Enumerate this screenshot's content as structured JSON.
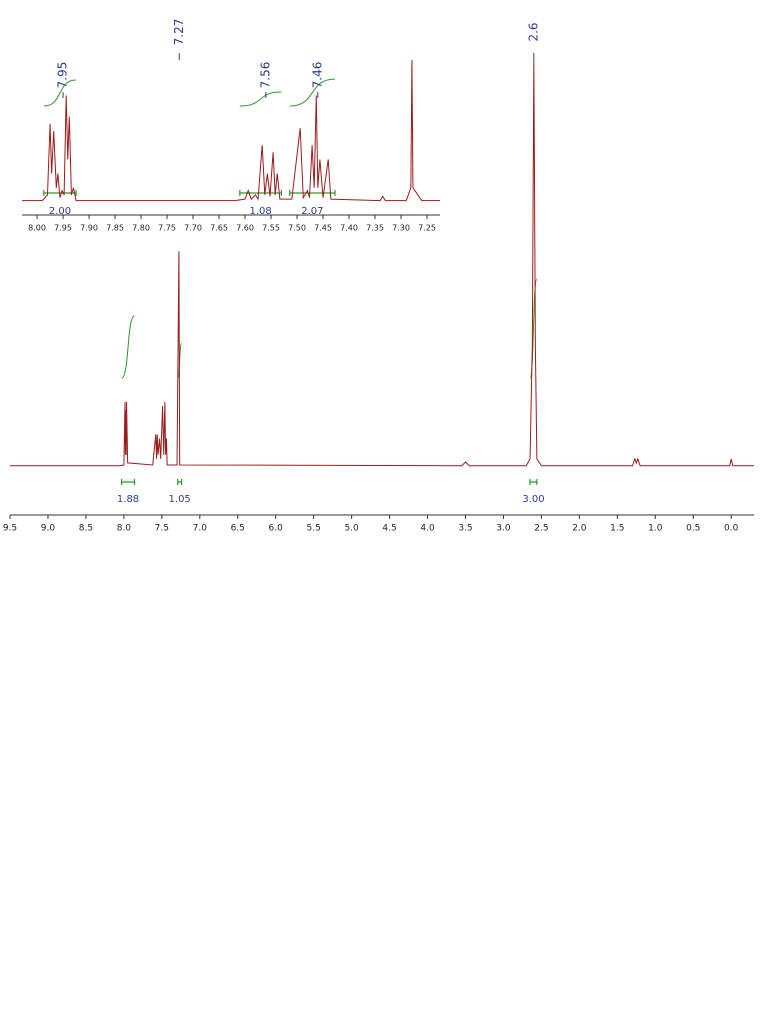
{
  "chart_data": [
    {
      "type": "line",
      "color": "#9b1c1c",
      "x": [
        9.5,
        8.05,
        8.0,
        7.985,
        7.98,
        7.975,
        7.97,
        7.965,
        7.95,
        7.62,
        7.58,
        7.57,
        7.56,
        7.55,
        7.53,
        7.515,
        7.49,
        7.475,
        7.46,
        7.45,
        7.44,
        7.43,
        7.3,
        7.275,
        7.265,
        3.55,
        3.5,
        3.45,
        2.7,
        2.65,
        2.62,
        2.6,
        2.58,
        2.56,
        2.5,
        1.3,
        1.27,
        1.25,
        1.23,
        1.2,
        0.02,
        0.0,
        -0.02,
        -0.3
      ],
      "values": [
        0.3,
        0.3,
        0.5,
        16,
        3,
        14,
        3,
        16,
        1,
        0.5,
        8,
        2,
        8,
        3,
        7,
        2,
        15,
        3,
        16,
        3,
        7,
        0.5,
        0.5,
        53,
        0.5,
        0.3,
        1.2,
        0.3,
        0.3,
        2,
        30,
        100,
        30,
        2,
        0.3,
        0.3,
        2,
        1,
        2,
        0.3,
        0.3,
        2,
        0.3,
        0.3
      ],
      "xlim": [
        9.5,
        -0.3
      ],
      "ylim": [
        0,
        100
      ],
      "xticks": [
        9.5,
        {
          "value": 9,
          "label": "9.0"
        },
        8.5,
        {
          "value": 8,
          "label": "8.0"
        },
        7.5,
        {
          "value": 7,
          "label": "7.0"
        },
        6.5,
        {
          "value": 6,
          "label": "6.0"
        },
        5.5,
        {
          "value": 5,
          "label": "5.0"
        },
        4.5,
        {
          "value": 4,
          "label": "4.0"
        },
        3.5,
        {
          "value": 3,
          "label": "3.0"
        },
        2.5,
        {
          "value": 2,
          "label": "2.0"
        },
        1.5,
        {
          "value": 1,
          "label": "1.0"
        },
        0.5,
        {
          "value": 0,
          "label": "0.0"
        }
      ],
      "peaks": [
        7.27,
        2.6
      ],
      "integrals": {
        "ranges": [
          [
            8.03,
            7.86
          ],
          [
            7.29,
            7.24
          ],
          [
            2.65,
            2.56
          ]
        ],
        "values": [
          1.88,
          1.05,
          3
        ],
        "value_labels": [
          "1.88",
          "1.05",
          "3.00"
        ]
      }
    },
    {
      "type": "line",
      "color": "#9b1c1c",
      "x": [
        8.029,
        7.99,
        7.98,
        7.975,
        7.972,
        7.968,
        7.963,
        7.96,
        7.956,
        7.952,
        7.948,
        7.944,
        7.941,
        7.938,
        7.934,
        7.93,
        7.925,
        7.62,
        7.6,
        7.594,
        7.588,
        7.58,
        7.575,
        7.567,
        7.562,
        7.557,
        7.552,
        7.546,
        7.542,
        7.538,
        7.533,
        7.51,
        7.494,
        7.488,
        7.48,
        7.476,
        7.471,
        7.467,
        7.463,
        7.46,
        7.456,
        7.45,
        7.44,
        7.435,
        7.34,
        7.335,
        7.33,
        7.29,
        7.281,
        7.279,
        7.277,
        7.26,
        7.225
      ],
      "values": [
        1,
        1,
        5,
        55,
        20,
        50,
        10,
        20,
        3,
        8,
        5,
        75,
        30,
        60,
        5,
        10,
        1,
        1,
        2,
        8,
        2,
        5,
        2,
        40,
        5,
        20,
        4,
        35,
        5,
        20,
        2,
        2,
        52,
        3,
        8,
        3,
        40,
        10,
        75,
        10,
        30,
        3,
        30,
        2,
        1,
        4,
        1,
        1,
        10,
        100,
        10,
        1,
        1
      ],
      "xlim": [
        8.029,
        7.225
      ],
      "ylim": [
        0,
        100
      ],
      "xticks": [
        {
          "value": 8,
          "label": "8.00"
        },
        7.95,
        {
          "value": 7.9,
          "label": "7.90"
        },
        7.85,
        {
          "value": 7.8,
          "label": "7.80"
        },
        7.75,
        {
          "value": 7.7,
          "label": "7.70"
        },
        7.65,
        {
          "value": 7.6,
          "label": "7.60"
        },
        7.55,
        {
          "value": 7.5,
          "label": "7.50"
        },
        7.45,
        {
          "value": 7.4,
          "label": "7.40"
        },
        7.35,
        {
          "value": 7.3,
          "label": "7.30"
        },
        7.25
      ],
      "peaks": [
        7.95,
        7.56,
        7.46
      ],
      "integrals": {
        "ranges": [
          [
            7.987,
            7.925
          ],
          [
            7.61,
            7.53
          ],
          [
            7.514,
            7.427
          ]
        ],
        "values": [
          2,
          1.08,
          2.07
        ],
        "value_labels": [
          "2.00",
          "1.08",
          "2.07"
        ]
      }
    }
  ]
}
